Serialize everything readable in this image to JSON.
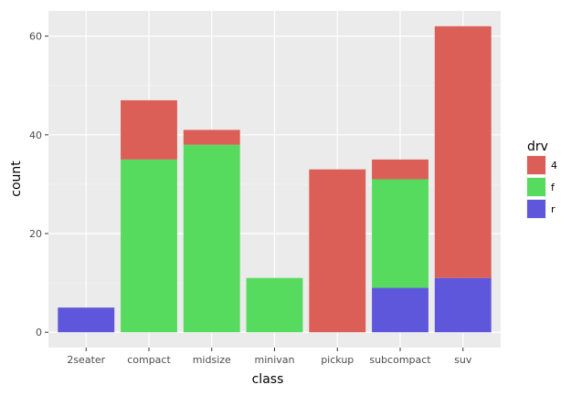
{
  "chart_data": {
    "type": "bar",
    "stacked": true,
    "title": "",
    "xlabel": "class",
    "ylabel": "count",
    "categories": [
      "2seater",
      "compact",
      "midsize",
      "minivan",
      "pickup",
      "subcompact",
      "suv"
    ],
    "series": [
      {
        "name": "4",
        "color": "#db5f57",
        "values": [
          0,
          12,
          3,
          0,
          33,
          4,
          51
        ]
      },
      {
        "name": "f",
        "color": "#57db5f",
        "values": [
          0,
          35,
          38,
          11,
          0,
          22,
          0
        ]
      },
      {
        "name": "r",
        "color": "#5f57db",
        "values": [
          5,
          0,
          0,
          0,
          0,
          9,
          11
        ]
      }
    ],
    "yticks": [
      0,
      20,
      40,
      60
    ],
    "ytick_labels": [
      "0",
      "20",
      "40",
      "60"
    ],
    "ylim": [
      -3.1,
      65.1
    ],
    "grid": true,
    "legend": {
      "title": "drv",
      "position": "right"
    }
  }
}
